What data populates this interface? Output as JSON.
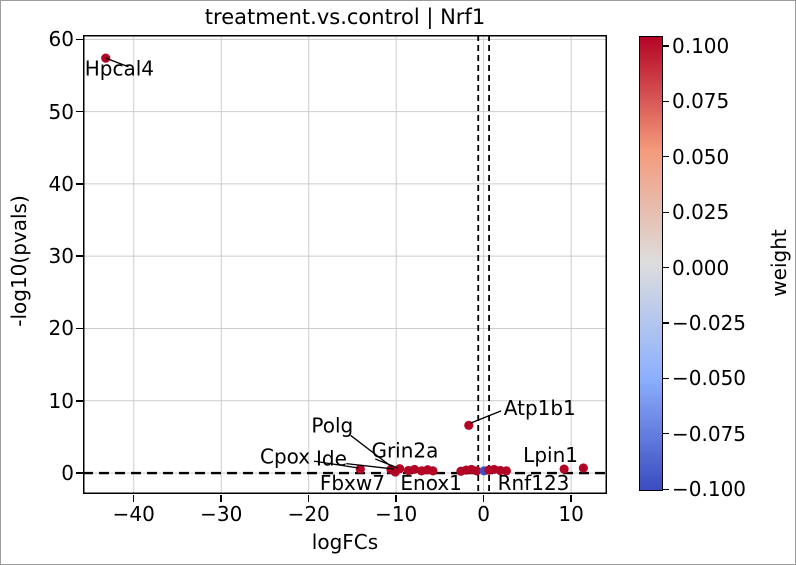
{
  "chart_data": {
    "type": "scatter",
    "title": "treatment.vs.control | Nrf1",
    "xlabel": "logFCs",
    "ylabel": "-log10(pvals)",
    "xlim": [
      -45.8,
      14.1
    ],
    "ylim": [
      -2.9,
      60.6
    ],
    "grid": true,
    "grid_color": "#cccccc",
    "xticks": [
      -40,
      -30,
      -20,
      -10,
      0,
      10
    ],
    "xtick_labels": [
      "−40",
      "−30",
      "−20",
      "−10",
      "0",
      "10"
    ],
    "yticks": [
      0,
      10,
      20,
      30,
      40,
      50,
      60
    ],
    "ytick_labels": [
      "0",
      "10",
      "20",
      "30",
      "40",
      "50",
      "60"
    ],
    "threshold_lines": {
      "vertical_x": [
        -0.62,
        0.62
      ],
      "horizontal_y": 0
    },
    "points": [
      {
        "x": -43.2,
        "y": 57.4,
        "weight": 0.1,
        "color": "#b40426"
      },
      {
        "x": -1.7,
        "y": 6.6,
        "weight": 0.1,
        "color": "#b40426"
      },
      {
        "x": -14.1,
        "y": 0.55,
        "weight": 0.1,
        "color": "#b40426"
      },
      {
        "x": -10.6,
        "y": 0.5,
        "weight": 0.1,
        "color": "#b40426"
      },
      {
        "x": -10.1,
        "y": 0.15,
        "weight": 0.1,
        "color": "#b40426"
      },
      {
        "x": -9.6,
        "y": 0.6,
        "weight": 0.1,
        "color": "#b40426"
      },
      {
        "x": -8.6,
        "y": 0.35,
        "weight": 0.1,
        "color": "#b40426"
      },
      {
        "x": -7.9,
        "y": 0.5,
        "weight": 0.1,
        "color": "#b40426"
      },
      {
        "x": -7.1,
        "y": 0.3,
        "weight": 0.1,
        "color": "#b40426"
      },
      {
        "x": -6.4,
        "y": 0.45,
        "weight": 0.1,
        "color": "#b40426"
      },
      {
        "x": -5.8,
        "y": 0.3,
        "weight": 0.1,
        "color": "#b40426"
      },
      {
        "x": -2.6,
        "y": 0.25,
        "weight": 0.1,
        "color": "#b40426"
      },
      {
        "x": -2.0,
        "y": 0.4,
        "weight": 0.1,
        "color": "#b40426"
      },
      {
        "x": -1.4,
        "y": 0.5,
        "weight": 0.1,
        "color": "#b40426"
      },
      {
        "x": -0.8,
        "y": 0.3,
        "weight": 0.1,
        "color": "#b40426"
      },
      {
        "x": 0.05,
        "y": 0.3,
        "weight": -0.08,
        "color": "#3d50c3"
      },
      {
        "x": 0.6,
        "y": 0.4,
        "weight": 0.1,
        "color": "#b40426"
      },
      {
        "x": 1.2,
        "y": 0.5,
        "weight": 0.1,
        "color": "#b40426"
      },
      {
        "x": 1.9,
        "y": 0.35,
        "weight": 0.1,
        "color": "#b40426"
      },
      {
        "x": 2.6,
        "y": 0.3,
        "weight": 0.1,
        "color": "#b40426"
      },
      {
        "x": 9.2,
        "y": 0.55,
        "weight": 0.1,
        "color": "#b40426"
      },
      {
        "x": 11.4,
        "y": 0.7,
        "weight": 0.1,
        "color": "#b40426"
      }
    ],
    "annotations": [
      {
        "label": "Hpcal4",
        "x": -45.6,
        "y": 56.0,
        "anchor": "start",
        "leader": [
          [
            -43.2,
            57.4
          ],
          [
            -40.6,
            56.2
          ]
        ]
      },
      {
        "label": "Polg",
        "x": -17.3,
        "y": 6.6,
        "anchor": "middle",
        "leader": [
          [
            -15.2,
            5.2
          ],
          [
            -10.5,
            0.85
          ]
        ]
      },
      {
        "label": "Cpox",
        "x": -22.7,
        "y": 2.3,
        "anchor": "middle",
        "leader": [
          [
            -19.4,
            1.65
          ],
          [
            -14.3,
            0.7
          ]
        ]
      },
      {
        "label": "Ide",
        "x": -17.4,
        "y": 2.0,
        "anchor": "middle",
        "leader": [
          [
            -15.7,
            1.3
          ],
          [
            -10.2,
            0.55
          ]
        ]
      },
      {
        "label": "Grin2a",
        "x": -9.0,
        "y": 3.1,
        "anchor": "middle",
        "leader": [
          [
            -12.4,
            1.95
          ],
          [
            -9.8,
            0.7
          ]
        ]
      },
      {
        "label": "Fbxw7",
        "x": -15.0,
        "y": -1.35,
        "anchor": "middle",
        "leader": null
      },
      {
        "label": "Enox1",
        "x": -6.0,
        "y": -1.35,
        "anchor": "middle",
        "leader": null
      },
      {
        "label": "Rnf123",
        "x": 5.7,
        "y": -1.35,
        "anchor": "middle",
        "leader": null
      },
      {
        "label": "Atp1b1",
        "x": 2.3,
        "y": 9.0,
        "anchor": "start",
        "leader": [
          [
            -1.5,
            6.9
          ],
          [
            2.0,
            8.6
          ]
        ]
      },
      {
        "label": "Lpin1",
        "x": 7.65,
        "y": 2.5,
        "anchor": "middle",
        "leader": null
      }
    ],
    "colorbar": {
      "label": "weight",
      "cmap": "coolwarm",
      "ticks": [
        0.1,
        0.075,
        0.05,
        0.025,
        0.0,
        -0.025,
        -0.05,
        -0.075,
        -0.1
      ],
      "tick_labels": [
        "0.100",
        "0.075",
        "0.050",
        "0.025",
        "0.000",
        "−0.025",
        "−0.050",
        "−0.075",
        "−0.100"
      ],
      "gradient_top_to_bottom": [
        "#b40426",
        "#f49a7b",
        "#dddddd",
        "#8db0fe",
        "#3b4cc0"
      ]
    }
  }
}
